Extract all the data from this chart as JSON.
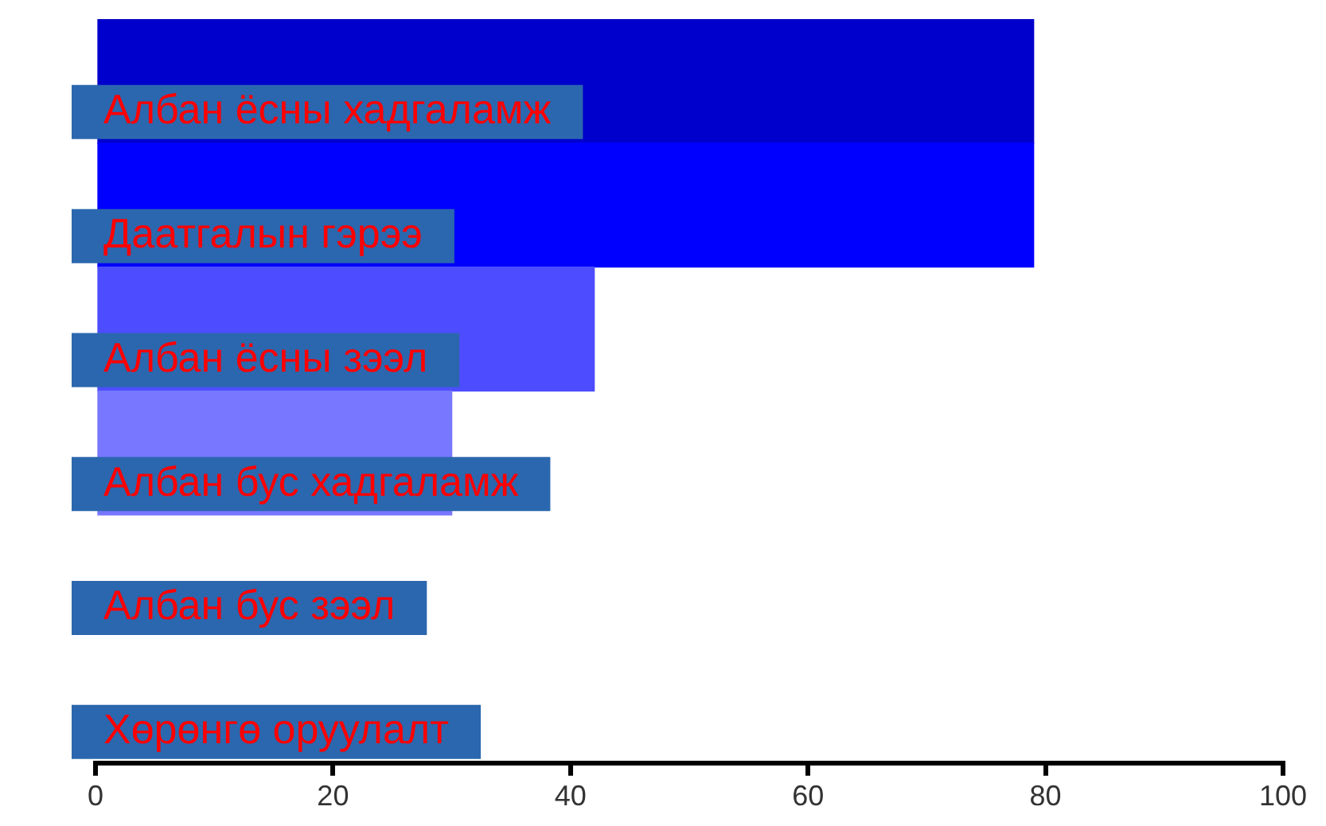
{
  "chart_data": {
    "type": "bar",
    "orientation": "horizontal",
    "categories": [
      "Албан ёсны хадгаламж",
      "Даатгалын гэрээ",
      "Албан ёсны зээл",
      "Албан бус хадгаламж",
      "Албан бус зээл",
      "Хөрөнгө оруулалт"
    ],
    "values": [
      79,
      79,
      42,
      30,
      null,
      null
    ],
    "colors": [
      "#0000cc",
      "#0000ff",
      "#4d4dff",
      "#7777ff",
      "#7777ff",
      "#7777ff"
    ],
    "xlim": [
      0,
      100
    ],
    "xticks": [
      0,
      20,
      40,
      60,
      80,
      100
    ],
    "grid": false,
    "legend": false
  }
}
